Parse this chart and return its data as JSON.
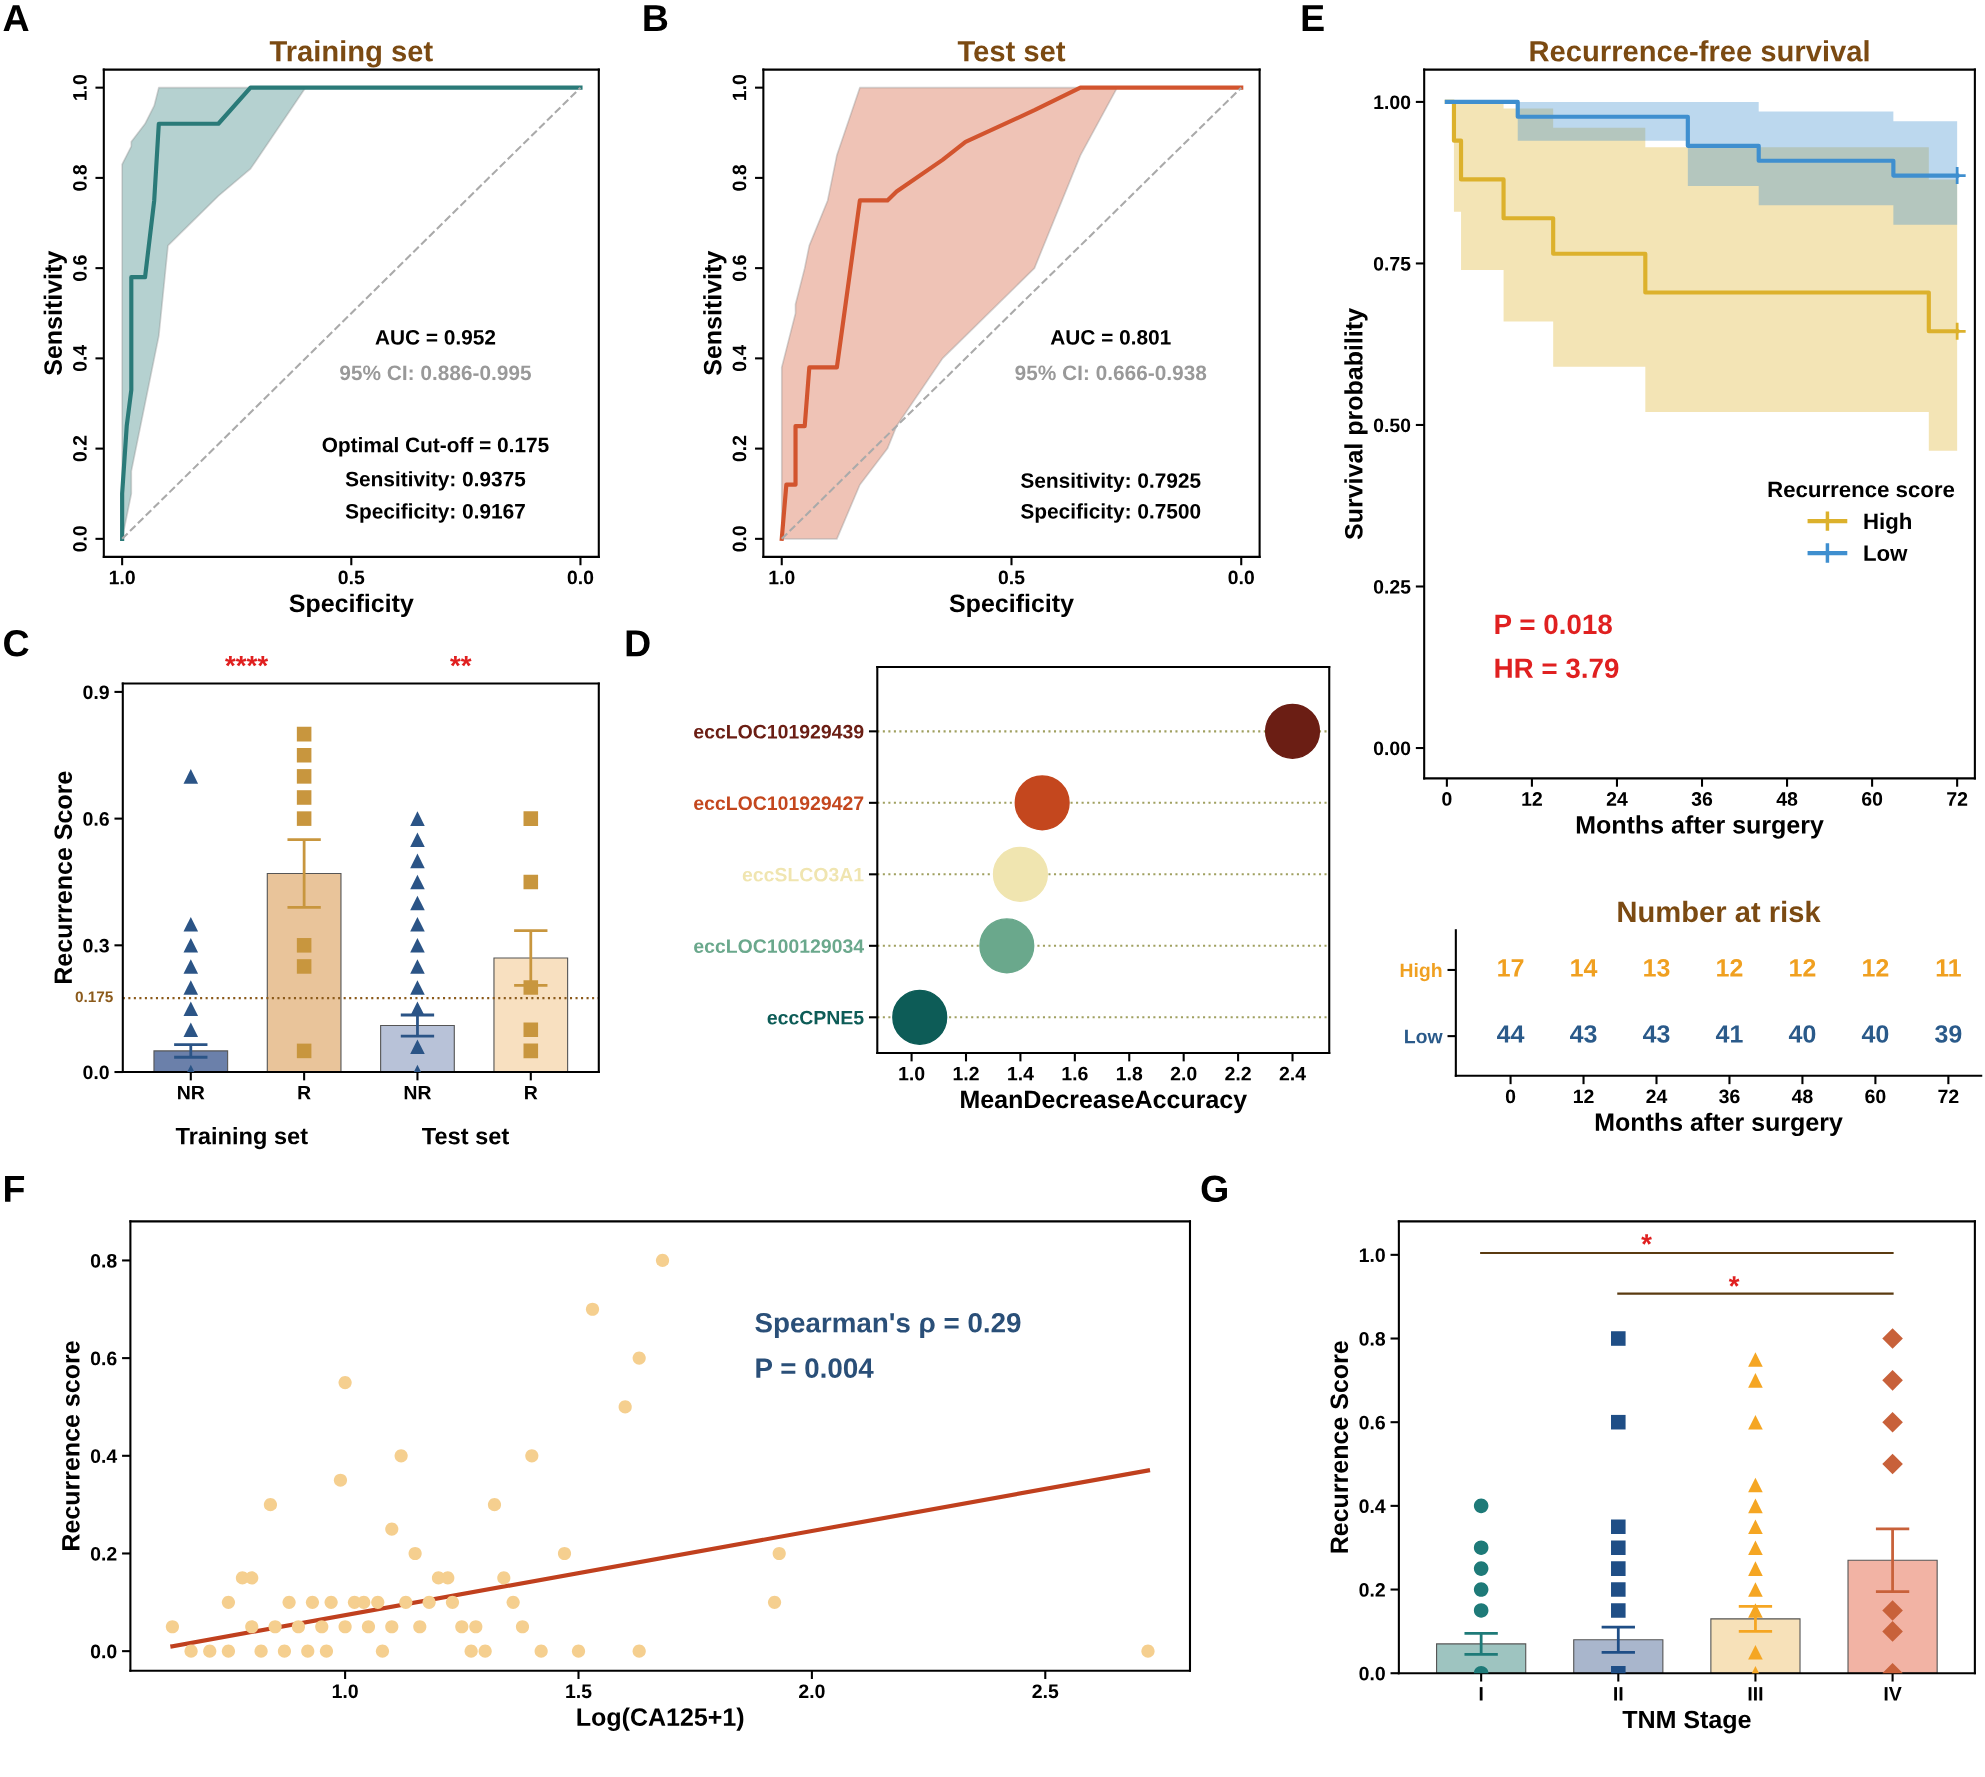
{
  "chart_data": [
    {
      "type": "line",
      "title": "Training set",
      "xlabel": "Specificity",
      "ylabel": "Sensitivity",
      "xlim": [
        1.04,
        -0.04
      ],
      "ylim": [
        -0.04,
        1.04
      ],
      "xticks": [
        {
          "value": 1,
          "label": "1.0"
        },
        0.5,
        {
          "value": 0,
          "label": "0.0"
        }
      ],
      "yticks": [
        {
          "value": 0,
          "label": "0.0"
        },
        0.2,
        0.4,
        0.6,
        0.8,
        {
          "value": 1,
          "label": "1.0"
        }
      ],
      "annotations": [
        "A",
        "AUC = 0.952",
        "95% CI: 0.886-0.995",
        "Optimal Cut-off = 0.175",
        "Sensitivity: 0.9375",
        "Specificity: 0.9167"
      ],
      "series": [
        {
          "color": "#2a7a78",
          "x": [
            1,
            1,
            0.99,
            0.98,
            0.98,
            0.95,
            0.93,
            0.92,
            0.9,
            0.8,
            0.79,
            0.72,
            0.6,
            0.5,
            0
          ],
          "values": [
            0,
            0.1,
            0.25,
            0.33,
            0.58,
            0.58,
            0.75,
            0.92,
            0.92,
            0.92,
            0.92,
            1.0,
            1.0,
            1.0,
            1.0
          ],
          "lower": [
            0,
            0,
            0.05,
            0.1,
            0.15,
            0.3,
            0.4,
            0.45,
            0.65,
            0.75,
            0.76,
            0.82,
            1.0,
            1.0,
            1.0
          ],
          "upper": [
            0,
            0.83,
            0.85,
            0.87,
            0.88,
            0.92,
            0.96,
            1.0,
            1,
            1,
            1,
            1,
            1,
            1,
            1
          ]
        },
        {
          "color": "#aaaaaa",
          "line_style": "dashed",
          "x": [
            1,
            0
          ],
          "values": [
            0,
            1
          ]
        }
      ]
    },
    {
      "type": "line",
      "title": "Test set",
      "xlabel": "Specificity",
      "ylabel": "Sensitivity",
      "xlim": [
        1.04,
        -0.04
      ],
      "ylim": [
        -0.04,
        1.04
      ],
      "xticks": [
        {
          "value": 1,
          "label": "1.0"
        },
        0.5,
        {
          "value": 0,
          "label": "0.0"
        }
      ],
      "yticks": [
        {
          "value": 0,
          "label": "0.0"
        },
        0.2,
        0.4,
        0.6,
        0.8,
        {
          "value": 1,
          "label": "1.0"
        }
      ],
      "annotations": [
        "B",
        "AUC = 0.801",
        "95% CI: 0.666-0.938",
        "Sensitivity: 0.7925",
        "Specificity: 0.7500"
      ],
      "series": [
        {
          "color": "#d2542e",
          "x": [
            1,
            0.99,
            0.97,
            0.97,
            0.95,
            0.94,
            0.9,
            0.88,
            0.83,
            0.77,
            0.75,
            0.65,
            0.6,
            0.45,
            0.35,
            0.27,
            0
          ],
          "values": [
            0,
            0.12,
            0.12,
            0.25,
            0.25,
            0.38,
            0.38,
            0.38,
            0.75,
            0.75,
            0.77,
            0.84,
            0.88,
            0.95,
            1.0,
            1.0,
            1.0
          ],
          "lower": [
            0,
            0,
            0,
            0,
            0,
            0,
            0,
            0,
            0.12,
            0.2,
            0.25,
            0.4,
            0.45,
            0.6,
            0.85,
            1.0,
            1.0
          ],
          "upper": [
            0.38,
            0.42,
            0.5,
            0.52,
            0.6,
            0.65,
            0.75,
            0.85,
            1.0,
            1,
            1,
            1,
            1,
            1,
            1,
            1,
            1
          ]
        },
        {
          "color": "#aaaaaa",
          "line_style": "dashed",
          "x": [
            1,
            0
          ],
          "values": [
            0,
            1
          ]
        }
      ]
    },
    {
      "type": "bar",
      "ylabel": "Recurrence Score",
      "categories": [
        "NR",
        "R",
        "NR",
        "R"
      ],
      "values": [
        0.05,
        0.47,
        0.11,
        0.27
      ],
      "errors": [
        0.015,
        0.08,
        0.025,
        0.065
      ],
      "colors": [
        "#6b80aa",
        "#e9c49a",
        "#b8c2d8",
        "#f8e0c0"
      ],
      "ylim": [
        0,
        0.92
      ],
      "yticks": [
        {
          "value": 0,
          "label": "0.0"
        },
        0.3,
        0.6,
        0.9
      ],
      "ref_lines": [
        {
          "axis": "y",
          "value": 0.175,
          "label": "0.175",
          "color": "#8b5a1b",
          "line_style": "dotted"
        }
      ],
      "annotations": [
        "C",
        "****",
        "**",
        "Training set",
        "Test set"
      ],
      "series": [
        {
          "type": "scatter",
          "color": "#2b5486",
          "marker": "triangle",
          "values": [
            0.7,
            null,
            0.6,
            null
          ]
        },
        {
          "type": "scatter",
          "color": "#2b5486",
          "marker": "triangle",
          "values": [
            0.35,
            null,
            0.55,
            null
          ]
        },
        {
          "type": "scatter",
          "color": "#2b5486",
          "marker": "triangle",
          "values": [
            0.3,
            null,
            0.5,
            null
          ]
        },
        {
          "type": "scatter",
          "color": "#2b5486",
          "marker": "triangle",
          "values": [
            0.25,
            null,
            0.45,
            null
          ]
        },
        {
          "type": "scatter",
          "color": "#2b5486",
          "marker": "triangle",
          "values": [
            0.2,
            null,
            0.4,
            null
          ]
        },
        {
          "type": "scatter",
          "color": "#2b5486",
          "marker": "triangle",
          "values": [
            0.15,
            null,
            0.35,
            null
          ]
        },
        {
          "type": "scatter",
          "color": "#2b5486",
          "marker": "triangle",
          "values": [
            0.1,
            null,
            0.3,
            null
          ]
        },
        {
          "type": "scatter",
          "color": "#2b5486",
          "marker": "triangle",
          "values": [
            0,
            null,
            0.25,
            null
          ]
        },
        {
          "type": "scatter",
          "color": "#2b5486",
          "marker": "triangle",
          "values": [
            null,
            null,
            0.2,
            null
          ]
        },
        {
          "type": "scatter",
          "color": "#2b5486",
          "marker": "triangle",
          "values": [
            null,
            null,
            0.15,
            null
          ]
        },
        {
          "type": "scatter",
          "color": "#2b5486",
          "marker": "triangle",
          "values": [
            null,
            null,
            0.06,
            null
          ]
        },
        {
          "type": "scatter",
          "color": "#2b5486",
          "marker": "triangle",
          "values": [
            null,
            null,
            0,
            null
          ]
        },
        {
          "type": "scatter",
          "color": "#c8963e",
          "marker": "square",
          "values": [
            null,
            0.8,
            null,
            0.6
          ]
        },
        {
          "type": "scatter",
          "color": "#c8963e",
          "marker": "square",
          "values": [
            null,
            0.75,
            null,
            0.45
          ]
        },
        {
          "type": "scatter",
          "color": "#c8963e",
          "marker": "square",
          "values": [
            null,
            0.7,
            null,
            0.2
          ]
        },
        {
          "type": "scatter",
          "color": "#c8963e",
          "marker": "square",
          "values": [
            null,
            0.65,
            null,
            0.1
          ]
        },
        {
          "type": "scatter",
          "color": "#c8963e",
          "marker": "square",
          "values": [
            null,
            0.6,
            null,
            0.05
          ]
        },
        {
          "type": "scatter",
          "color": "#c8963e",
          "marker": "square",
          "values": [
            null,
            0.3,
            null,
            null
          ]
        },
        {
          "type": "scatter",
          "color": "#c8963e",
          "marker": "square",
          "values": [
            null,
            0.25,
            null,
            null
          ]
        },
        {
          "type": "scatter",
          "color": "#c8963e",
          "marker": "square",
          "values": [
            null,
            0.05,
            null,
            null
          ]
        }
      ]
    },
    {
      "type": "scatter",
      "orientation": "horizontal",
      "xlabel": "MeanDecreaseAccuracy",
      "categories": [
        "eccLOC101929439",
        "eccLOC101929427",
        "eccSLCO3A1",
        "eccLOC100129034",
        "eccCPNE5"
      ],
      "xlim": [
        0.874,
        2.535
      ],
      "xticks": [
        {
          "value": 1,
          "label": "1.0"
        },
        1.2,
        1.4,
        1.6,
        1.8,
        {
          "value": 2,
          "label": "2.0"
        },
        2.2,
        2.4
      ],
      "grid": "y",
      "annotations": [
        "D"
      ],
      "series": [
        {
          "colors": [
            "#6b1e14",
            "#c4471e",
            "#f0e5b0",
            "#6aa88c",
            "#0d5c57"
          ],
          "values": [
            2.4,
            1.48,
            1.4,
            1.35,
            1.03
          ]
        }
      ]
    },
    {
      "type": "step",
      "title": "Recurrence-free survival",
      "xlabel": "Months after surgery",
      "ylabel": "Survival probability",
      "xlim": [
        -3.2,
        74.5
      ],
      "ylim": [
        -0.047,
        1.05
      ],
      "xticks": [
        0,
        12,
        24,
        36,
        48,
        60,
        72
      ],
      "yticks": [
        {
          "value": 0,
          "label": "0.00"
        },
        {
          "value": 0.25,
          "label": "0.25"
        },
        {
          "value": 0.5,
          "label": "0.50"
        },
        {
          "value": 0.75,
          "label": "0.75"
        },
        {
          "value": 1,
          "label": "1.00"
        }
      ],
      "legend": "right",
      "legend_title": "Recurrence score",
      "annotations": [
        "E",
        "P = 0.018",
        "HR = 3.79"
      ],
      "series": [
        {
          "name": "High",
          "color": "#dcb12c",
          "x": [
            0,
            1,
            2,
            8,
            15,
            28,
            68,
            72
          ],
          "values": [
            1,
            0.94,
            0.88,
            0.82,
            0.765,
            0.705,
            0.645,
            0.645
          ],
          "lower": [
            1,
            0.83,
            0.74,
            0.66,
            0.59,
            0.52,
            0.46,
            0.46
          ],
          "upper": [
            1,
            1,
            1,
            0.99,
            0.96,
            0.93,
            0.88,
            0.88
          ]
        },
        {
          "name": "Low",
          "color": "#3f8fcf",
          "x": [
            0,
            10,
            34,
            44,
            63,
            72
          ],
          "values": [
            1,
            0.977,
            0.932,
            0.909,
            0.886,
            0.886
          ],
          "lower": [
            1,
            0.94,
            0.87,
            0.84,
            0.81,
            0.81
          ],
          "upper": [
            1,
            1,
            1,
            0.985,
            0.97,
            0.97
          ]
        },
        {
          "type": "scatter",
          "color": "#dcb12c",
          "marker": "cross",
          "x": [
            72
          ],
          "values": [
            0.645
          ]
        },
        {
          "type": "scatter",
          "color": "#3f8fcf",
          "marker": "cross",
          "x": [
            72
          ],
          "values": [
            0.886
          ]
        }
      ]
    },
    {
      "type": "heatmap",
      "title": "Number at risk",
      "xlabel": "Months after surgery",
      "categories": [
        "0",
        "12",
        "24",
        "36",
        "48",
        "60",
        "72"
      ],
      "y_categories": [
        "High",
        "Low"
      ],
      "data_labels": true,
      "cells": [
        [
          17,
          14,
          13,
          12,
          12,
          12,
          11
        ],
        [
          44,
          43,
          43,
          41,
          40,
          40,
          39
        ]
      ]
    },
    {
      "type": "scatter",
      "xlabel": "Log(CA125+1)",
      "ylabel": "Recurrence score",
      "xlim": [
        0.54,
        2.81
      ],
      "ylim": [
        -0.04,
        0.88
      ],
      "xticks": [
        {
          "value": 1,
          "label": "1.0"
        },
        1.5,
        {
          "value": 2,
          "label": "2.0"
        },
        2.5
      ],
      "yticks": [
        {
          "value": 0,
          "label": "0.0"
        },
        0.2,
        0.4,
        0.6,
        0.8
      ],
      "annotations": [
        "F",
        "Spearman's ρ = 0.29",
        "P = 0.004"
      ],
      "series": [
        {
          "color": "#f5cf8f",
          "marker": "circle",
          "x": [
            0.63,
            0.67,
            0.71,
            0.75,
            0.78,
            0.8,
            0.8,
            0.82,
            0.84,
            0.85,
            0.87,
            0.88,
            0.9,
            0.92,
            0.93,
            0.95,
            0.97,
            0.99,
            1.0,
            1.0,
            1.02,
            1.04,
            1.05,
            1.07,
            1.08,
            1.1,
            1.1,
            1.12,
            1.13,
            1.15,
            1.16,
            1.18,
            1.2,
            1.22,
            1.23,
            1.25,
            1.27,
            1.28,
            1.32,
            1.34,
            1.36,
            1.38,
            1.4,
            1.42,
            1.47,
            1.5,
            1.53,
            1.6,
            1.63,
            1.63,
            1.68,
            1.92,
            1.93,
            2.72,
            0.75,
            0.96,
            1.3
          ],
          "values": [
            0.05,
            0,
            0,
            0.1,
            0.15,
            0.15,
            0.05,
            0,
            0.3,
            0.05,
            0,
            0.1,
            0.05,
            0,
            0.1,
            0.05,
            0.1,
            0.35,
            0.55,
            0.05,
            0.1,
            0.1,
            0.05,
            0.1,
            0,
            0.05,
            0.25,
            0.4,
            0.1,
            0.2,
            0.05,
            0.1,
            0.15,
            0.15,
            0.1,
            0.05,
            0,
            0.05,
            0.3,
            0.15,
            0.1,
            0.05,
            0.4,
            0,
            0.2,
            0,
            0.7,
            0.5,
            0.6,
            0,
            0.8,
            0.1,
            0.2,
            0,
            0,
            0,
            0
          ]
        },
        {
          "type": "line",
          "color": "#c0401e",
          "x": [
            0.63,
            2.72
          ],
          "values": [
            0.01,
            0.37
          ]
        }
      ]
    },
    {
      "type": "bar",
      "xlabel": "TNM Stage",
      "ylabel": "Recurrence Score",
      "categories": [
        "I",
        "II",
        "III",
        "IV"
      ],
      "values": [
        0.07,
        0.08,
        0.13,
        0.27
      ],
      "errors": [
        0.025,
        0.03,
        0.03,
        0.075
      ],
      "colors": [
        "#9ec4c0",
        "#a9b6cc",
        "#f7e1b9",
        "#f2b3a4"
      ],
      "ylim": [
        0,
        1.08
      ],
      "yticks": [
        {
          "value": 0,
          "label": "0.0"
        },
        0.2,
        0.4,
        0.6,
        0.8,
        {
          "value": 1,
          "label": "1.0"
        }
      ],
      "annotations": [
        "G",
        "*",
        "*"
      ],
      "series": [
        {
          "type": "scatter",
          "color": "#1e7a78",
          "marker": "circle",
          "x": [
            "I",
            "I",
            "I",
            "I",
            "I",
            "I"
          ],
          "values": [
            0.4,
            0.3,
            0.25,
            0.2,
            0.15,
            0
          ]
        },
        {
          "type": "scatter",
          "color": "#1f4e86",
          "marker": "square",
          "x": [
            "II",
            "II",
            "II",
            "II",
            "II",
            "II",
            "II",
            "II"
          ],
          "values": [
            0.8,
            0.6,
            0.35,
            0.3,
            0.25,
            0.2,
            0.15,
            0
          ]
        },
        {
          "type": "scatter",
          "color": "#f5a623",
          "marker": "triangle",
          "x": [
            "III",
            "III",
            "III",
            "III",
            "III",
            "III",
            "III",
            "III",
            "III",
            "III",
            "III",
            "III"
          ],
          "values": [
            0.75,
            0.7,
            0.6,
            0.45,
            0.4,
            0.35,
            0.3,
            0.25,
            0.2,
            0.05,
            0.15,
            0
          ]
        },
        {
          "type": "scatter",
          "color": "#c8613a",
          "marker": "diamond",
          "x": [
            "IV",
            "IV",
            "IV",
            "IV",
            "IV",
            "IV",
            "IV"
          ],
          "values": [
            0.8,
            0.7,
            0.6,
            0.5,
            0.15,
            0.1,
            0
          ]
        }
      ]
    }
  ]
}
